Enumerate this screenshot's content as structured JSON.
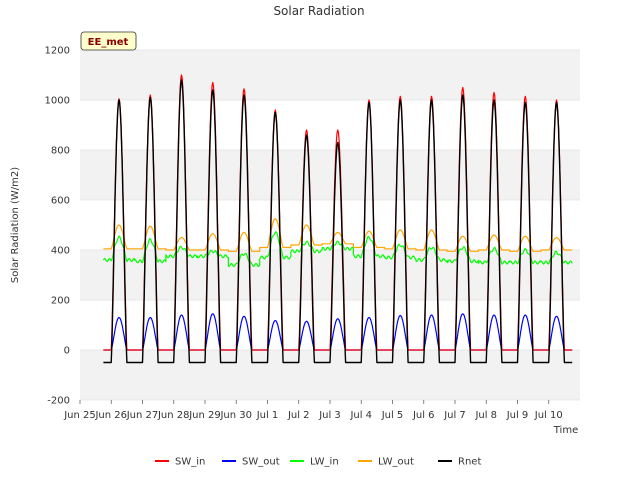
{
  "chart_data": {
    "type": "line",
    "title": "Solar Radiation",
    "xlabel": "Time",
    "ylabel": "Solar Radiation (W/m2)",
    "tag": "EE_met",
    "ylim": [
      -200,
      1200
    ],
    "yticks": [
      -200,
      0,
      200,
      400,
      600,
      800,
      1000,
      1200
    ],
    "xlim": [
      0,
      16
    ],
    "xtick_labels": [
      "Jun 25",
      "Jun 26",
      "Jun 27",
      "Jun 28",
      "Jun 29",
      "Jun 30",
      "Jul 1",
      "Jul 2",
      "Jul 3",
      "Jul 4",
      "Jul 5",
      "Jul 6",
      "Jul 7",
      "Jul 8",
      "Jul 9",
      "Jul 10"
    ],
    "xtick_values": [
      0,
      1,
      2,
      3,
      4,
      5,
      6,
      7,
      8,
      9,
      10,
      11,
      12,
      13,
      14,
      15
    ],
    "days": [
      "Jun 25",
      "Jun 26",
      "Jun 27",
      "Jun 28",
      "Jun 29",
      "Jun 30",
      "Jul 1",
      "Jul 2",
      "Jul 3",
      "Jul 4",
      "Jul 5",
      "Jul 6",
      "Jul 7",
      "Jul 8",
      "Jul 9"
    ],
    "grid": true,
    "legend_position": "bottom",
    "series": [
      {
        "name": "SW_in",
        "color": "#ff0000",
        "daily_peak": [
          1005,
          1020,
          1100,
          1070,
          1045,
          960,
          880,
          880,
          1000,
          1015,
          1015,
          1050,
          1030,
          1015,
          1000
        ]
      },
      {
        "name": "SW_out",
        "color": "#0000ff",
        "daily_peak": [
          130,
          130,
          140,
          145,
          135,
          118,
          115,
          125,
          130,
          138,
          140,
          145,
          140,
          140,
          135
        ]
      },
      {
        "name": "LW_in",
        "color": "#00ff00",
        "daily_peak": [
          450,
          440,
          410,
          395,
          385,
          470,
          430,
          430,
          450,
          420,
          410,
          410,
          405,
          400,
          390
        ],
        "daily_min": [
          360,
          355,
          375,
          375,
          340,
          370,
          395,
          405,
          375,
          370,
          360,
          355,
          350,
          350,
          350
        ]
      },
      {
        "name": "LW_out",
        "color": "#ffa500",
        "daily_peak": [
          500,
          495,
          450,
          465,
          470,
          525,
          500,
          470,
          475,
          480,
          480,
          455,
          460,
          455,
          450
        ],
        "daily_min": [
          405,
          405,
          400,
          400,
          395,
          410,
          420,
          425,
          410,
          405,
          400,
          395,
          400,
          395,
          400
        ]
      },
      {
        "name": "Rnet",
        "color": "#000000",
        "daily_peak": [
          1000,
          1010,
          1080,
          1040,
          1020,
          950,
          860,
          830,
          990,
          1000,
          1000,
          1020,
          1000,
          990,
          990
        ],
        "night_value": -50
      }
    ]
  }
}
